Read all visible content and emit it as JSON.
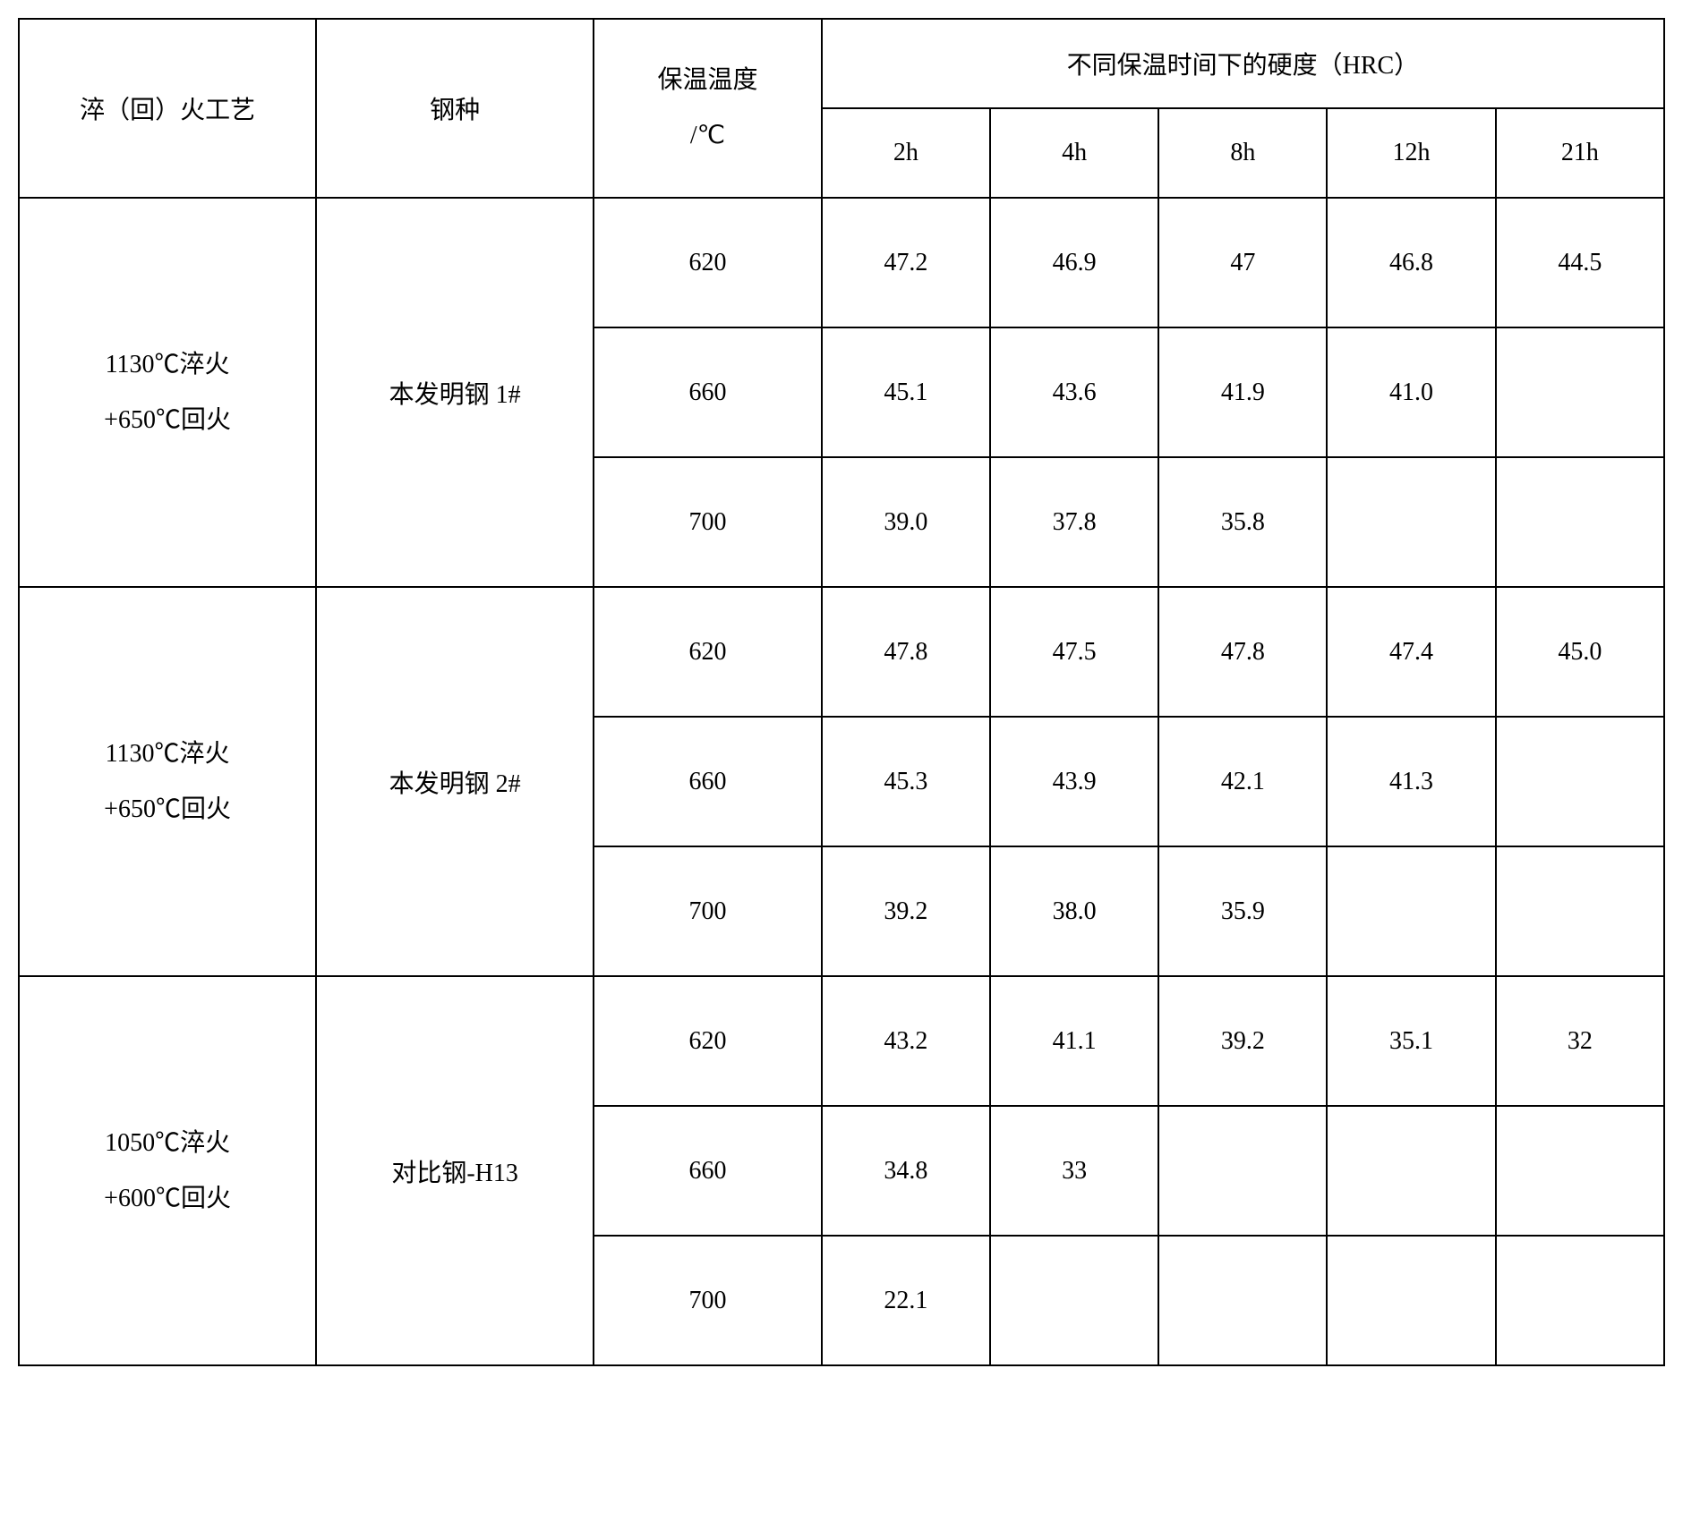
{
  "headers": {
    "process": "淬（回）火工艺",
    "steel": "钢种",
    "temp_line1": "保温温度",
    "temp_line2": "/℃",
    "hardness_group": "不同保温时间下的硬度（HRC）",
    "times": [
      "2h",
      "4h",
      "8h",
      "12h",
      "21h"
    ]
  },
  "groups": [
    {
      "process_line1": "1130℃淬火",
      "process_line2": "+650℃回火",
      "steel": "本发明钢 1#",
      "rows": [
        {
          "temp": "620",
          "vals": [
            "47.2",
            "46.9",
            "47",
            "46.8",
            "44.5"
          ]
        },
        {
          "temp": "660",
          "vals": [
            "45.1",
            "43.6",
            "41.9",
            "41.0",
            ""
          ]
        },
        {
          "temp": "700",
          "vals": [
            "39.0",
            "37.8",
            "35.8",
            "",
            ""
          ]
        }
      ]
    },
    {
      "process_line1": "1130℃淬火",
      "process_line2": "+650℃回火",
      "steel": "本发明钢 2#",
      "rows": [
        {
          "temp": "620",
          "vals": [
            "47.8",
            "47.5",
            "47.8",
            "47.4",
            "45.0"
          ]
        },
        {
          "temp": "660",
          "vals": [
            "45.3",
            "43.9",
            "42.1",
            "41.3",
            ""
          ]
        },
        {
          "temp": "700",
          "vals": [
            "39.2",
            "38.0",
            "35.9",
            "",
            ""
          ]
        }
      ]
    },
    {
      "process_line1": "1050℃淬火",
      "process_line2": "+600℃回火",
      "steel": "对比钢-H13",
      "rows": [
        {
          "temp": "620",
          "vals": [
            "43.2",
            "41.1",
            "39.2",
            "35.1",
            "32"
          ]
        },
        {
          "temp": "660",
          "vals": [
            "34.8",
            "33",
            "",
            "",
            ""
          ]
        },
        {
          "temp": "700",
          "vals": [
            "22.1",
            "",
            "",
            "",
            ""
          ]
        }
      ]
    }
  ],
  "style": {
    "border_color": "#000000",
    "background_color": "#ffffff",
    "text_color": "#000000",
    "font_size": 28,
    "border_width": 2
  }
}
